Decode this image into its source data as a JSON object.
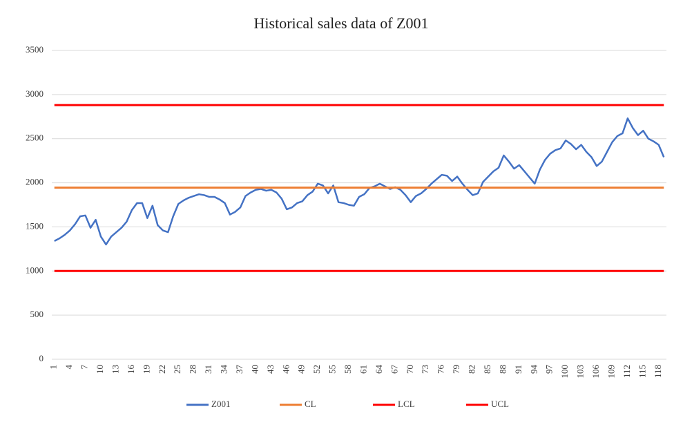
{
  "chart_data": {
    "type": "line",
    "title": "Historical sales data of Z001",
    "categories": [
      "1",
      null,
      null,
      "4",
      null,
      null,
      "7",
      null,
      null,
      "10",
      null,
      null,
      "13",
      null,
      null,
      "16",
      null,
      null,
      "19",
      null,
      null,
      "22",
      null,
      null,
      "25",
      null,
      null,
      "28",
      null,
      null,
      "31",
      null,
      null,
      "34",
      null,
      null,
      "37",
      null,
      null,
      "40",
      null,
      null,
      "43",
      null,
      null,
      "46",
      null,
      null,
      "49",
      null,
      null,
      "52",
      null,
      null,
      "55",
      null,
      null,
      "58",
      null,
      null,
      "61",
      null,
      null,
      "64",
      null,
      null,
      "67",
      null,
      null,
      "70",
      null,
      null,
      "73",
      null,
      null,
      "76",
      null,
      null,
      "79",
      null,
      null,
      "82",
      null,
      null,
      "85",
      null,
      null,
      "88",
      null,
      null,
      "91",
      null,
      null,
      "94",
      null,
      null,
      "97",
      null,
      null,
      "100",
      null,
      null,
      "103",
      null,
      null,
      "106",
      null,
      null,
      "109",
      null,
      null,
      "112",
      null,
      null,
      "115",
      null,
      null,
      "118",
      null
    ],
    "series": [
      {
        "name": "Z001",
        "color": "#4472c4",
        "values": [
          1340,
          1370,
          1410,
          1460,
          1530,
          1620,
          1630,
          1490,
          1580,
          1390,
          1300,
          1390,
          1440,
          1490,
          1560,
          1690,
          1770,
          1770,
          1600,
          1740,
          1520,
          1460,
          1440,
          1620,
          1760,
          1800,
          1830,
          1850,
          1870,
          1860,
          1840,
          1840,
          1810,
          1770,
          1640,
          1670,
          1720,
          1850,
          1890,
          1920,
          1930,
          1910,
          1920,
          1890,
          1820,
          1700,
          1720,
          1770,
          1790,
          1860,
          1900,
          1990,
          1970,
          1880,
          1970,
          1780,
          1770,
          1750,
          1740,
          1840,
          1870,
          1940,
          1960,
          1990,
          1960,
          1930,
          1950,
          1920,
          1860,
          1780,
          1850,
          1880,
          1930,
          1990,
          2040,
          2090,
          2080,
          2020,
          2070,
          1990,
          1920,
          1860,
          1880,
          2010,
          2070,
          2130,
          2170,
          2310,
          2240,
          2160,
          2200,
          2130,
          2060,
          1990,
          2150,
          2260,
          2330,
          2370,
          2390,
          2480,
          2440,
          2380,
          2430,
          2350,
          2290,
          2190,
          2240,
          2350,
          2460,
          2530,
          2560,
          2730,
          2620,
          2540,
          2590,
          2500,
          2470,
          2430,
          2290
        ]
      },
      {
        "name": "CL",
        "color": "#ed7d31",
        "values": [
          1945,
          1945,
          1945,
          1945,
          1945,
          1945,
          1945,
          1945,
          1945,
          1945,
          1945,
          1945,
          1945,
          1945,
          1945,
          1945,
          1945,
          1945,
          1945,
          1945,
          1945,
          1945,
          1945,
          1945,
          1945,
          1945,
          1945,
          1945,
          1945,
          1945,
          1945,
          1945,
          1945,
          1945,
          1945,
          1945,
          1945,
          1945,
          1945,
          1945,
          1945,
          1945,
          1945,
          1945,
          1945,
          1945,
          1945,
          1945,
          1945,
          1945,
          1945,
          1945,
          1945,
          1945,
          1945,
          1945,
          1945,
          1945,
          1945,
          1945,
          1945,
          1945,
          1945,
          1945,
          1945,
          1945,
          1945,
          1945,
          1945,
          1945,
          1945,
          1945,
          1945,
          1945,
          1945,
          1945,
          1945,
          1945,
          1945,
          1945,
          1945,
          1945,
          1945,
          1945,
          1945,
          1945,
          1945,
          1945,
          1945,
          1945,
          1945,
          1945,
          1945,
          1945,
          1945,
          1945,
          1945,
          1945,
          1945,
          1945,
          1945,
          1945,
          1945,
          1945,
          1945,
          1945,
          1945,
          1945,
          1945,
          1945,
          1945,
          1945,
          1945,
          1945,
          1945,
          1945,
          1945,
          1945,
          1945
        ]
      },
      {
        "name": "LCL",
        "color": "#ff0000",
        "values": [
          1000,
          1000,
          1000,
          1000,
          1000,
          1000,
          1000,
          1000,
          1000,
          1000,
          1000,
          1000,
          1000,
          1000,
          1000,
          1000,
          1000,
          1000,
          1000,
          1000,
          1000,
          1000,
          1000,
          1000,
          1000,
          1000,
          1000,
          1000,
          1000,
          1000,
          1000,
          1000,
          1000,
          1000,
          1000,
          1000,
          1000,
          1000,
          1000,
          1000,
          1000,
          1000,
          1000,
          1000,
          1000,
          1000,
          1000,
          1000,
          1000,
          1000,
          1000,
          1000,
          1000,
          1000,
          1000,
          1000,
          1000,
          1000,
          1000,
          1000,
          1000,
          1000,
          1000,
          1000,
          1000,
          1000,
          1000,
          1000,
          1000,
          1000,
          1000,
          1000,
          1000,
          1000,
          1000,
          1000,
          1000,
          1000,
          1000,
          1000,
          1000,
          1000,
          1000,
          1000,
          1000,
          1000,
          1000,
          1000,
          1000,
          1000,
          1000,
          1000,
          1000,
          1000,
          1000,
          1000,
          1000,
          1000,
          1000,
          1000,
          1000,
          1000,
          1000,
          1000,
          1000,
          1000,
          1000,
          1000,
          1000,
          1000,
          1000,
          1000,
          1000,
          1000,
          1000,
          1000,
          1000,
          1000,
          1000
        ]
      },
      {
        "name": "UCL",
        "color": "#ff0000",
        "values": [
          2880,
          2880,
          2880,
          2880,
          2880,
          2880,
          2880,
          2880,
          2880,
          2880,
          2880,
          2880,
          2880,
          2880,
          2880,
          2880,
          2880,
          2880,
          2880,
          2880,
          2880,
          2880,
          2880,
          2880,
          2880,
          2880,
          2880,
          2880,
          2880,
          2880,
          2880,
          2880,
          2880,
          2880,
          2880,
          2880,
          2880,
          2880,
          2880,
          2880,
          2880,
          2880,
          2880,
          2880,
          2880,
          2880,
          2880,
          2880,
          2880,
          2880,
          2880,
          2880,
          2880,
          2880,
          2880,
          2880,
          2880,
          2880,
          2880,
          2880,
          2880,
          2880,
          2880,
          2880,
          2880,
          2880,
          2880,
          2880,
          2880,
          2880,
          2880,
          2880,
          2880,
          2880,
          2880,
          2880,
          2880,
          2880,
          2880,
          2880,
          2880,
          2880,
          2880,
          2880,
          2880,
          2880,
          2880,
          2880,
          2880,
          2880,
          2880,
          2880,
          2880,
          2880,
          2880,
          2880,
          2880,
          2880,
          2880,
          2880,
          2880,
          2880,
          2880,
          2880,
          2880,
          2880,
          2880,
          2880,
          2880,
          2880,
          2880,
          2880,
          2880,
          2880,
          2880,
          2880,
          2880,
          2880,
          2880
        ]
      }
    ],
    "ylim": [
      0,
      3500
    ],
    "yticks": [
      0,
      500,
      1000,
      1500,
      2000,
      2500,
      3000,
      3500
    ],
    "grid": true,
    "legend": "bottom"
  }
}
